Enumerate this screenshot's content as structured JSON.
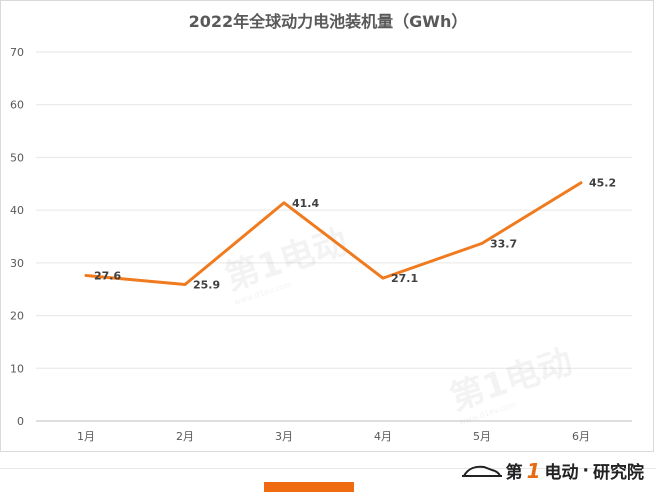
{
  "chart_data": {
    "type": "line",
    "title": "2022年全球动力电池装机量（GWh）",
    "categories": [
      "1月",
      "2月",
      "3月",
      "4月",
      "5月",
      "6月"
    ],
    "series": [
      {
        "values": [
          27.6,
          25.9,
          41.4,
          27.1,
          33.7,
          45.2
        ]
      }
    ],
    "data_labels": [
      "27.6",
      "25.9",
      "41.4",
      "27.1",
      "33.7",
      "45.2"
    ],
    "ylim": [
      0,
      70
    ],
    "yticks": [
      0,
      10,
      20,
      30,
      40,
      50,
      60,
      70
    ],
    "grid": true,
    "line_color": "#f07a1e"
  },
  "watermark": {
    "text": "第1电动",
    "url": "www.d1ev.com"
  },
  "brand": {
    "first": "第",
    "one": "1",
    "second": "电动",
    "dot": "·",
    "suffix": "研究院"
  }
}
